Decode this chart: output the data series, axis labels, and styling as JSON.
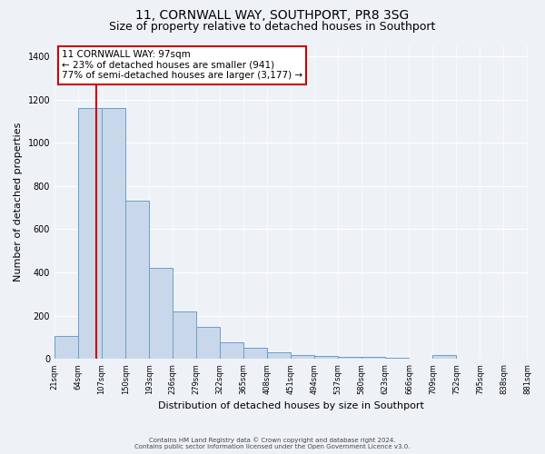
{
  "title": "11, CORNWALL WAY, SOUTHPORT, PR8 3SG",
  "subtitle": "Size of property relative to detached houses in Southport",
  "xlabel": "Distribution of detached houses by size in Southport",
  "ylabel": "Number of detached properties",
  "bar_heights": [
    107,
    1160,
    1160,
    730,
    420,
    220,
    150,
    75,
    50,
    30,
    20,
    15,
    10,
    8,
    5,
    3,
    20,
    0,
    0,
    0
  ],
  "bin_edges": [
    21,
    64,
    107,
    150,
    193,
    236,
    279,
    322,
    365,
    408,
    451,
    494,
    537,
    580,
    623,
    666,
    709,
    752,
    795,
    838,
    881
  ],
  "tick_labels": [
    "21sqm",
    "64sqm",
    "107sqm",
    "150sqm",
    "193sqm",
    "236sqm",
    "279sqm",
    "322sqm",
    "365sqm",
    "408sqm",
    "451sqm",
    "494sqm",
    "537sqm",
    "580sqm",
    "623sqm",
    "666sqm",
    "709sqm",
    "752sqm",
    "795sqm",
    "838sqm",
    "881sqm"
  ],
  "bar_color": "#c8d8ea",
  "bar_edge_color": "#6a9ec8",
  "red_line_x": 97,
  "ylim": [
    0,
    1450
  ],
  "yticks": [
    0,
    200,
    400,
    600,
    800,
    1000,
    1200,
    1400
  ],
  "annotation_title": "11 CORNWALL WAY: 97sqm",
  "annotation_line1": "← 23% of detached houses are smaller (941)",
  "annotation_line2": "77% of semi-detached houses are larger (3,177) →",
  "annotation_box_color": "#ffffff",
  "annotation_box_edge": "#cc0000",
  "footer_line1": "Contains HM Land Registry data © Crown copyright and database right 2024.",
  "footer_line2": "Contains public sector information licensed under the Open Government Licence v3.0.",
  "background_color": "#eef2f7",
  "grid_color": "#ffffff",
  "title_fontsize": 10,
  "subtitle_fontsize": 9,
  "label_fontsize": 8,
  "tick_fontsize": 6,
  "footer_fontsize": 5
}
